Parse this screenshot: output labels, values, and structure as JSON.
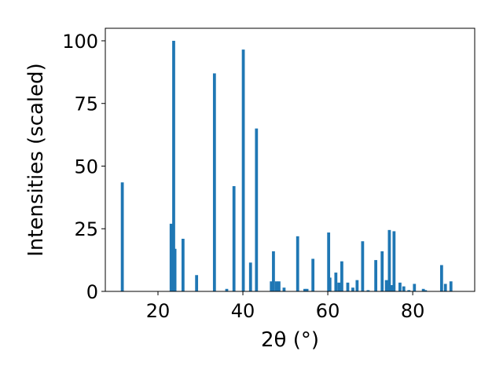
{
  "chart_data": {
    "type": "bar",
    "title": "",
    "xlabel": "2θ (°)",
    "ylabel": "Intensities (scaled)",
    "xlim": [
      7.6,
      94.6
    ],
    "ylim": [
      0,
      105
    ],
    "xticks": [
      20,
      40,
      60,
      80
    ],
    "yticks": [
      0,
      25,
      50,
      75,
      100
    ],
    "bar_color": "#1f77b4",
    "bar_width": 0.7,
    "grid": false,
    "legend": "none",
    "x": [
      11.6,
      23.1,
      23.7,
      24.0,
      25.9,
      29.1,
      33.3,
      36.2,
      37.9,
      40.1,
      41.8,
      43.2,
      46.7,
      47.2,
      47.9,
      48.5,
      49.7,
      52.9,
      54.6,
      55.1,
      56.5,
      60.2,
      60.5,
      61.9,
      62.6,
      63.3,
      64.7,
      65.9,
      66.9,
      68.2,
      69.5,
      71.3,
      72.8,
      73.8,
      74.5,
      75.1,
      75.6,
      77.0,
      77.9,
      79.1,
      80.4,
      82.5,
      83.0,
      86.8,
      87.7,
      89.0
    ],
    "values": [
      43.5,
      27,
      100,
      17,
      21,
      6.5,
      87,
      1,
      42,
      96.5,
      11.5,
      65,
      4,
      16,
      4,
      4,
      1.5,
      22,
      1,
      1,
      13,
      23.5,
      5.5,
      7.5,
      3.5,
      12,
      3.5,
      1.5,
      4.5,
      20,
      0.5,
      12.5,
      16,
      4.5,
      24.5,
      2.5,
      24,
      3.5,
      2,
      0.5,
      3,
      1,
      0.5,
      10.5,
      3,
      4
    ]
  }
}
